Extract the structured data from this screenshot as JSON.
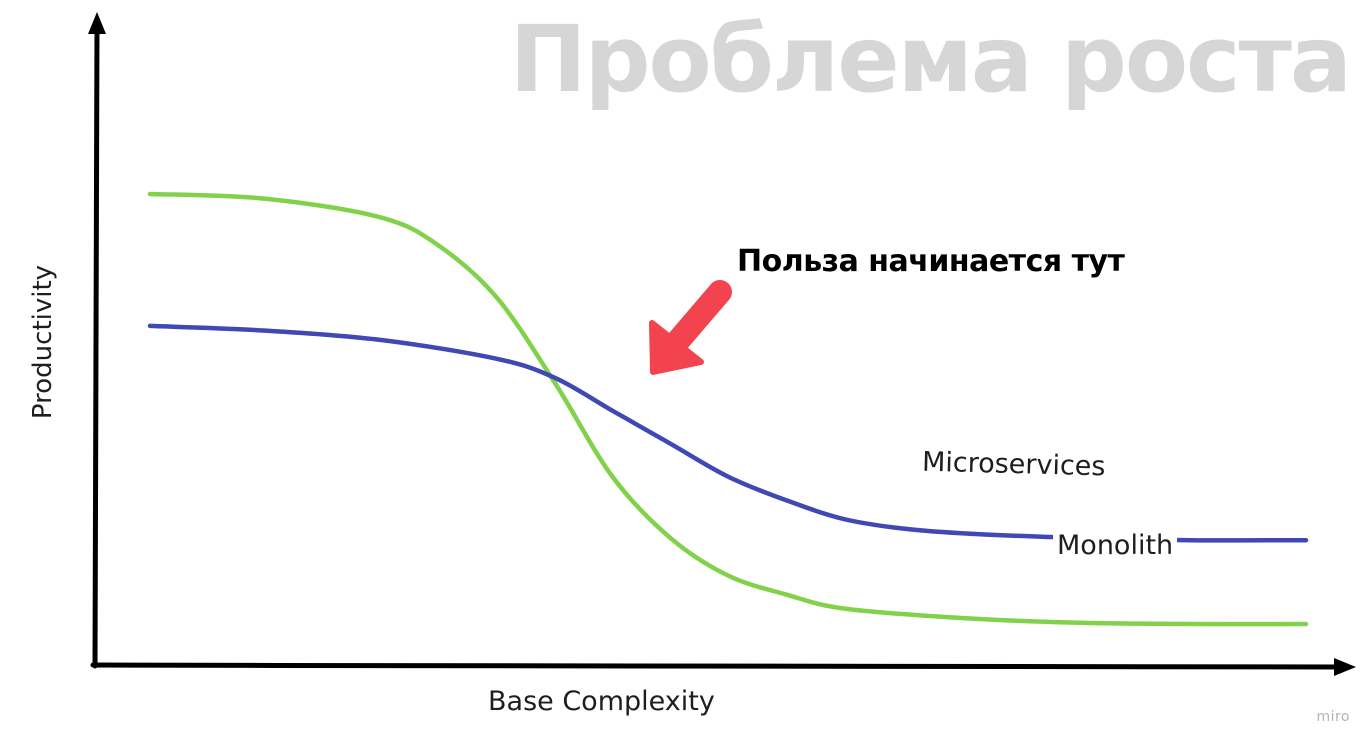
{
  "slide": {
    "title": "Проблема роста"
  },
  "annotation": {
    "text": "Польза начинается тут",
    "arrow_color": "#f2434f"
  },
  "axes": {
    "x_label": "Base Complexity",
    "y_label": "Productivity"
  },
  "chart_data": {
    "type": "line",
    "xlabel": "Base Complexity",
    "ylabel": "Productivity",
    "ylim": [
      0,
      100
    ],
    "xlim": [
      0,
      100
    ],
    "grid": false,
    "series": [
      {
        "name": "Microservices",
        "color": "#3f48b3",
        "x": [
          0,
          10,
          20,
          30,
          35,
          40,
          45,
          50,
          55,
          60,
          65,
          70,
          80,
          90,
          100
        ],
        "y": [
          72,
          71,
          69,
          65,
          61,
          54,
          47,
          40,
          35,
          31,
          29,
          28,
          27,
          26.5,
          26.5
        ]
      },
      {
        "name": "Monolith",
        "color": "#82d14a",
        "x": [
          0,
          10,
          20,
          25,
          30,
          35,
          40,
          45,
          50,
          55,
          60,
          70,
          80,
          90,
          100
        ],
        "y": [
          100,
          99,
          95,
          89,
          78,
          60,
          40,
          27,
          19,
          15,
          12,
          10,
          9,
          8.7,
          8.7
        ]
      }
    ]
  },
  "branding": {
    "watermark": "miro"
  }
}
